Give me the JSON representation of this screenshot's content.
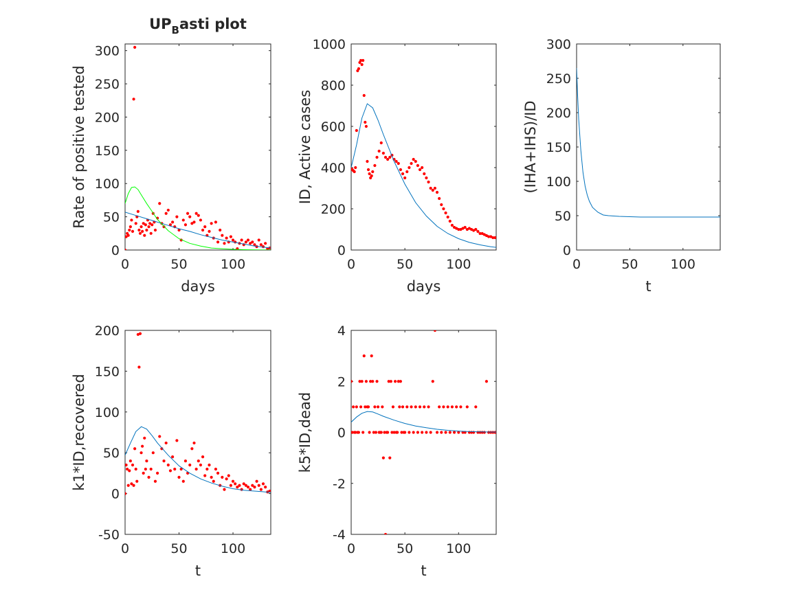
{
  "chart_data": [
    {
      "id": "p1",
      "type": "scatter",
      "title_main": "UP",
      "title_sub": "B",
      "title_rest": "asti plot",
      "xlabel": "days",
      "ylabel": "Rate of positive tested",
      "xlim": [
        0,
        135
      ],
      "ylim": [
        0,
        310
      ],
      "xticks": [
        0,
        50,
        100
      ],
      "yticks": [
        0,
        50,
        100,
        150,
        200,
        250,
        300
      ],
      "series": [
        {
          "kind": "points",
          "color": "#ff0000",
          "x": [
            0,
            1,
            2,
            3,
            4,
            5,
            6,
            7,
            8,
            9,
            10,
            11,
            12,
            13,
            14,
            15,
            16,
            17,
            18,
            19,
            20,
            21,
            22,
            23,
            24,
            25,
            26,
            27,
            28,
            30,
            32,
            34,
            36,
            38,
            40,
            42,
            44,
            46,
            48,
            50,
            52,
            54,
            56,
            58,
            60,
            62,
            64,
            66,
            68,
            70,
            72,
            74,
            76,
            78,
            80,
            82,
            84,
            86,
            88,
            90,
            92,
            94,
            96,
            98,
            100,
            102,
            104,
            106,
            108,
            110,
            112,
            114,
            116,
            118,
            120,
            122,
            124,
            126,
            128,
            130,
            132,
            134
          ],
          "y": [
            0,
            20,
            25,
            22,
            30,
            35,
            45,
            28,
            227,
            305,
            40,
            50,
            58,
            30,
            25,
            35,
            28,
            40,
            22,
            38,
            30,
            45,
            35,
            40,
            25,
            38,
            55,
            42,
            30,
            48,
            70,
            40,
            35,
            55,
            60,
            38,
            42,
            35,
            50,
            30,
            15,
            45,
            38,
            55,
            50,
            40,
            42,
            55,
            52,
            45,
            30,
            35,
            22,
            28,
            40,
            18,
            42,
            12,
            30,
            22,
            10,
            18,
            12,
            20,
            15,
            12,
            2,
            10,
            15,
            8,
            12,
            15,
            10,
            12,
            8,
            5,
            15,
            8,
            5,
            10,
            2,
            3
          ]
        },
        {
          "kind": "line",
          "color": "#0072bd",
          "x": [
            0,
            10,
            20,
            30,
            40,
            50,
            60,
            70,
            80,
            90,
            100,
            110,
            120,
            130,
            135
          ],
          "y": [
            57,
            52,
            47,
            42,
            37,
            32,
            28,
            23,
            19,
            15,
            12,
            9,
            6,
            4,
            3
          ]
        },
        {
          "kind": "line",
          "color": "#00ff00",
          "x": [
            0,
            3,
            6,
            9,
            12,
            15,
            20,
            25,
            30,
            40,
            50,
            60,
            70,
            80,
            90,
            100,
            110,
            120,
            130,
            135
          ],
          "y": [
            70,
            85,
            94,
            95,
            91,
            83,
            70,
            58,
            46,
            29,
            17,
            10,
            6,
            3,
            2,
            1,
            0.5,
            0.3,
            0.1,
            0.1
          ]
        }
      ]
    },
    {
      "id": "p2",
      "type": "scatter",
      "xlabel": "days",
      "ylabel": "ID, Active cases",
      "xlim": [
        0,
        135
      ],
      "ylim": [
        0,
        1000
      ],
      "xticks": [
        0,
        50,
        100
      ],
      "yticks": [
        0,
        200,
        400,
        600,
        800,
        1000
      ],
      "series": [
        {
          "kind": "points",
          "color": "#ff0000",
          "x": [
            0,
            1,
            2,
            3,
            4,
            5,
            6,
            7,
            8,
            9,
            10,
            11,
            12,
            13,
            14,
            15,
            16,
            17,
            18,
            19,
            20,
            22,
            24,
            26,
            28,
            30,
            32,
            34,
            36,
            38,
            40,
            42,
            44,
            46,
            48,
            50,
            52,
            54,
            56,
            58,
            60,
            62,
            64,
            66,
            68,
            70,
            72,
            74,
            76,
            78,
            80,
            82,
            84,
            86,
            88,
            90,
            92,
            94,
            96,
            98,
            100,
            102,
            104,
            106,
            108,
            110,
            112,
            114,
            116,
            118,
            120,
            122,
            124,
            126,
            128,
            130,
            132,
            134
          ],
          "y": [
            395,
            390,
            385,
            380,
            400,
            580,
            870,
            880,
            910,
            920,
            900,
            920,
            750,
            620,
            600,
            430,
            390,
            370,
            350,
            360,
            380,
            410,
            450,
            480,
            520,
            470,
            450,
            440,
            450,
            460,
            440,
            430,
            420,
            390,
            370,
            350,
            380,
            400,
            420,
            440,
            430,
            410,
            390,
            400,
            370,
            350,
            330,
            300,
            290,
            300,
            280,
            250,
            220,
            200,
            180,
            160,
            140,
            120,
            110,
            105,
            100,
            100,
            105,
            110,
            100,
            105,
            100,
            95,
            100,
            90,
            80,
            80,
            75,
            70,
            65,
            65,
            60,
            60
          ]
        },
        {
          "kind": "line",
          "color": "#0072bd",
          "x": [
            0,
            5,
            10,
            15,
            20,
            25,
            30,
            40,
            50,
            60,
            70,
            80,
            90,
            100,
            110,
            120,
            130,
            135
          ],
          "y": [
            400,
            510,
            640,
            710,
            690,
            630,
            560,
            430,
            320,
            230,
            165,
            115,
            80,
            55,
            37,
            25,
            16,
            13
          ]
        }
      ]
    },
    {
      "id": "p3",
      "type": "line",
      "xlabel": "t",
      "ylabel": "(IHA+IHS)/ID",
      "xlim": [
        0,
        135
      ],
      "ylim": [
        0,
        300
      ],
      "xticks": [
        0,
        50,
        100
      ],
      "yticks": [
        0,
        50,
        100,
        150,
        200,
        250,
        300
      ],
      "series": [
        {
          "kind": "line",
          "color": "#0072bd",
          "x": [
            0,
            1,
            2,
            4,
            6,
            8,
            10,
            12,
            15,
            20,
            25,
            30,
            40,
            50,
            60,
            80,
            100,
            120,
            135
          ],
          "y": [
            265,
            225,
            190,
            145,
            113,
            93,
            80,
            71,
            62,
            55,
            51,
            50,
            49,
            48.5,
            48,
            48,
            48,
            48,
            48
          ]
        }
      ]
    },
    {
      "id": "p4",
      "type": "scatter",
      "xlabel": "t",
      "ylabel": "k1*ID,recovered",
      "xlim": [
        0,
        135
      ],
      "ylim": [
        -50,
        200
      ],
      "xticks": [
        0,
        50,
        100
      ],
      "yticks": [
        -50,
        0,
        50,
        100,
        150,
        200
      ],
      "series": [
        {
          "kind": "points",
          "color": "#ff0000",
          "x": [
            0,
            1,
            2,
            3,
            4,
            5,
            6,
            7,
            8,
            9,
            10,
            11,
            12,
            13,
            14,
            15,
            16,
            17,
            18,
            19,
            20,
            22,
            24,
            26,
            28,
            30,
            32,
            34,
            36,
            38,
            40,
            42,
            44,
            46,
            48,
            50,
            52,
            54,
            56,
            58,
            60,
            62,
            64,
            66,
            68,
            70,
            72,
            74,
            76,
            78,
            80,
            82,
            84,
            86,
            88,
            90,
            92,
            94,
            96,
            98,
            100,
            102,
            104,
            106,
            108,
            110,
            112,
            114,
            116,
            118,
            120,
            122,
            124,
            126,
            128,
            130,
            132,
            134
          ],
          "y": [
            0,
            35,
            30,
            10,
            28,
            40,
            12,
            35,
            10,
            55,
            30,
            15,
            195,
            155,
            196,
            50,
            58,
            25,
            68,
            30,
            40,
            20,
            30,
            50,
            15,
            25,
            70,
            55,
            40,
            62,
            35,
            28,
            45,
            30,
            65,
            20,
            30,
            15,
            40,
            25,
            35,
            55,
            62,
            30,
            40,
            35,
            45,
            22,
            30,
            35,
            20,
            15,
            30,
            25,
            10,
            20,
            5,
            18,
            22,
            10,
            15,
            12,
            8,
            10,
            5,
            12,
            10,
            8,
            5,
            10,
            8,
            15,
            10,
            5,
            12,
            8,
            2,
            3
          ]
        },
        {
          "kind": "line",
          "color": "#0072bd",
          "x": [
            0,
            5,
            10,
            15,
            20,
            25,
            30,
            40,
            50,
            60,
            70,
            80,
            90,
            100,
            110,
            120,
            130,
            135
          ],
          "y": [
            47,
            62,
            76,
            82,
            79,
            71,
            62,
            47,
            34,
            25,
            18,
            13,
            9,
            6,
            4,
            3,
            2,
            1.5
          ]
        }
      ]
    },
    {
      "id": "p5",
      "type": "scatter",
      "xlabel": "t",
      "ylabel": "k5*ID,dead",
      "xlim": [
        0,
        135
      ],
      "ylim": [
        -4,
        4
      ],
      "xticks": [
        0,
        50,
        100
      ],
      "yticks": [
        -4,
        -2,
        0,
        2,
        4
      ],
      "series": [
        {
          "kind": "points",
          "color": "#ff0000",
          "x": [
            0,
            1,
            2,
            3,
            4,
            5,
            6,
            7,
            8,
            9,
            10,
            11,
            12,
            13,
            14,
            15,
            16,
            17,
            18,
            19,
            20,
            21,
            22,
            23,
            24,
            25,
            26,
            27,
            28,
            29,
            30,
            31,
            32,
            33,
            34,
            35,
            36,
            37,
            38,
            39,
            40,
            41,
            42,
            43,
            44,
            45,
            46,
            47,
            48,
            49,
            50,
            52,
            54,
            56,
            58,
            60,
            62,
            64,
            66,
            68,
            70,
            72,
            74,
            76,
            78,
            80,
            82,
            84,
            86,
            88,
            90,
            92,
            94,
            96,
            98,
            100,
            102,
            104,
            106,
            108,
            110,
            112,
            114,
            116,
            118,
            120,
            122,
            124,
            126,
            128,
            130,
            132,
            134
          ],
          "y": [
            2,
            0,
            1,
            0,
            0,
            1,
            0,
            0,
            2,
            1,
            2,
            0,
            3,
            1,
            2,
            1,
            1,
            0,
            2,
            3,
            2,
            0,
            1,
            0,
            2,
            1,
            0,
            0,
            0,
            1,
            -1,
            0,
            -4,
            0,
            0,
            2,
            -1,
            2,
            0,
            1,
            0,
            2,
            0,
            0,
            2,
            1,
            2,
            0,
            1,
            0,
            0,
            1,
            0,
            1,
            0,
            1,
            0,
            1,
            0,
            1,
            0,
            1,
            0,
            2,
            4,
            0,
            1,
            0,
            1,
            0,
            1,
            0,
            1,
            0,
            1,
            0,
            1,
            0,
            0,
            1,
            0,
            0,
            0,
            1,
            0,
            0,
            0,
            0,
            2,
            0,
            0,
            0,
            0
          ]
        },
        {
          "kind": "line",
          "color": "#0072bd",
          "x": [
            0,
            5,
            10,
            15,
            20,
            25,
            30,
            40,
            50,
            60,
            70,
            80,
            90,
            100,
            110,
            120,
            135
          ],
          "y": [
            0.4,
            0.6,
            0.75,
            0.82,
            0.8,
            0.72,
            0.63,
            0.48,
            0.35,
            0.25,
            0.18,
            0.12,
            0.08,
            0.05,
            0.03,
            0.02,
            0.01
          ]
        }
      ]
    }
  ]
}
